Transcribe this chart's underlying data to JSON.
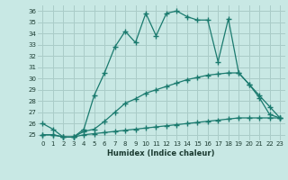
{
  "xlabel": "Humidex (Indice chaleur)",
  "x_values": [
    0,
    1,
    2,
    3,
    4,
    5,
    6,
    7,
    8,
    9,
    10,
    11,
    12,
    13,
    14,
    15,
    16,
    17,
    18,
    19,
    20,
    21,
    22,
    23
  ],
  "line1": [
    26,
    25.5,
    24.8,
    24.8,
    25.5,
    28.5,
    30.5,
    32.8,
    34.2,
    33.2,
    35.8,
    33.8,
    35.8,
    36.0,
    35.5,
    35.2,
    35.2,
    31.5,
    35.3,
    30.5,
    29.5,
    28.3,
    26.8,
    26.5
  ],
  "line2": [
    25.0,
    25.0,
    24.8,
    24.8,
    25.3,
    25.5,
    26.2,
    27.0,
    27.8,
    28.2,
    28.7,
    29.0,
    29.3,
    29.6,
    29.9,
    30.1,
    30.3,
    30.4,
    30.5,
    30.5,
    29.5,
    28.5,
    27.5,
    26.5
  ],
  "line3": [
    25.0,
    25.0,
    24.8,
    24.8,
    25.0,
    25.1,
    25.2,
    25.3,
    25.4,
    25.5,
    25.6,
    25.7,
    25.8,
    25.9,
    26.0,
    26.1,
    26.2,
    26.3,
    26.4,
    26.5,
    26.5,
    26.5,
    26.5,
    26.5
  ],
  "color": "#1a7a6e",
  "bg_color": "#c8e8e4",
  "grid_color": "#aaccc8",
  "ylim": [
    24.5,
    36.5
  ],
  "yticks": [
    25,
    26,
    27,
    28,
    29,
    30,
    31,
    32,
    33,
    34,
    35,
    36
  ],
  "xticks": [
    0,
    1,
    2,
    3,
    4,
    5,
    6,
    7,
    8,
    9,
    10,
    11,
    12,
    13,
    14,
    15,
    16,
    17,
    18,
    19,
    20,
    21,
    22,
    23
  ],
  "marker": "+",
  "markersize": 4.0,
  "linewidth": 0.9
}
